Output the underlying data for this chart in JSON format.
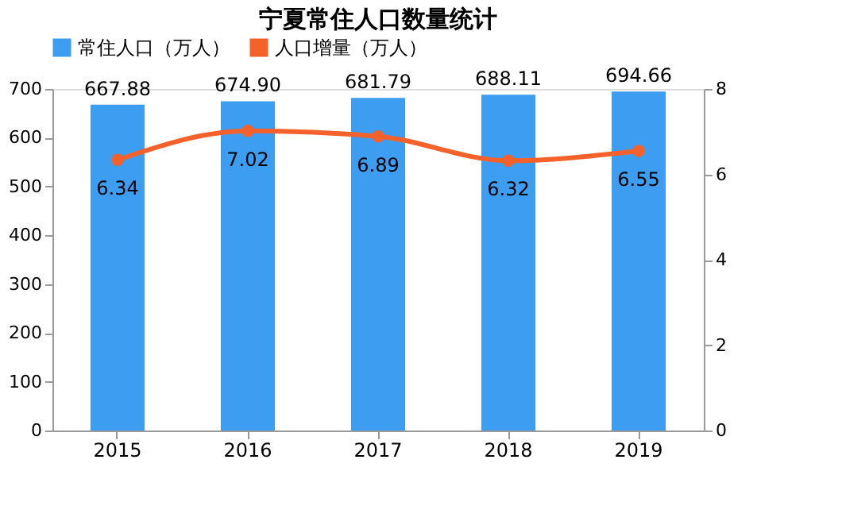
{
  "chart_data": {
    "type": "bar",
    "title": "宁夏常住人口数量统计",
    "categories": [
      "2015",
      "2016",
      "2017",
      "2018",
      "2019"
    ],
    "series": [
      {
        "name": "常住人口（万人）",
        "color": "#3d9df0",
        "values": [
          667.88,
          674.9,
          681.79,
          688.11,
          694.66
        ],
        "value_labels": [
          "667.88",
          "674.90",
          "681.79",
          "688.11",
          "694.66"
        ]
      },
      {
        "name": "人口增量（万人）",
        "type": "line",
        "axis": "y2",
        "color": "#f5612a",
        "marker": "circle",
        "values": [
          6.34,
          7.02,
          6.89,
          6.32,
          6.55
        ],
        "value_labels": [
          "6.34",
          "7.02",
          "6.89",
          "6.32",
          "6.55"
        ]
      }
    ],
    "ylim": [
      0,
      700
    ],
    "yticks": [
      0,
      100,
      200,
      300,
      400,
      500,
      600,
      700
    ],
    "y2lim": [
      0,
      8
    ],
    "y2ticks": [
      0,
      2,
      4,
      6,
      8
    ],
    "legend": "top",
    "grid": false
  }
}
